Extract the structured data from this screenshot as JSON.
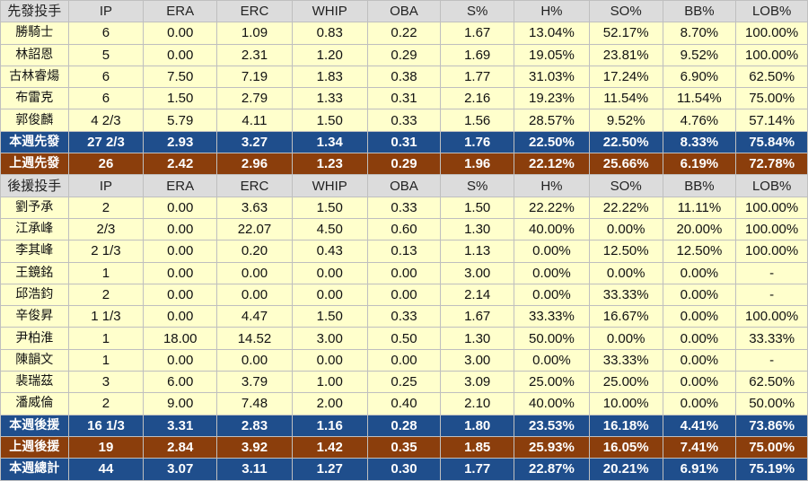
{
  "colors": {
    "header_bg": "#dcdcdc",
    "row_bg": "#ffffcc",
    "blue_total": "#1f4e8c",
    "brown_total": "#8b3e0c"
  },
  "starters": {
    "header": [
      "先發投手",
      "IP",
      "ERA",
      "ERC",
      "WHIP",
      "OBA",
      "S%",
      "H%",
      "SO%",
      "BB%",
      "LOB%"
    ],
    "rows": [
      [
        "勝騎士",
        "6",
        "0.00",
        "1.09",
        "0.83",
        "0.22",
        "1.67",
        "13.04%",
        "52.17%",
        "8.70%",
        "100.00%"
      ],
      [
        "林詔恩",
        "5",
        "0.00",
        "2.31",
        "1.20",
        "0.29",
        "1.69",
        "19.05%",
        "23.81%",
        "9.52%",
        "100.00%"
      ],
      [
        "古林睿煬",
        "6",
        "7.50",
        "7.19",
        "1.83",
        "0.38",
        "1.77",
        "31.03%",
        "17.24%",
        "6.90%",
        "62.50%"
      ],
      [
        "布雷克",
        "6",
        "1.50",
        "2.79",
        "1.33",
        "0.31",
        "2.16",
        "19.23%",
        "11.54%",
        "11.54%",
        "75.00%"
      ],
      [
        "郭俊麟",
        "4 2/3",
        "5.79",
        "4.11",
        "1.50",
        "0.33",
        "1.56",
        "28.57%",
        "9.52%",
        "4.76%",
        "57.14%"
      ]
    ],
    "this_week": [
      "本週先發",
      "27 2/3",
      "2.93",
      "3.27",
      "1.34",
      "0.31",
      "1.76",
      "22.50%",
      "22.50%",
      "8.33%",
      "75.84%"
    ],
    "last_week": [
      "上週先發",
      "26",
      "2.42",
      "2.96",
      "1.23",
      "0.29",
      "1.96",
      "22.12%",
      "25.66%",
      "6.19%",
      "72.78%"
    ]
  },
  "relievers": {
    "header": [
      "後援投手",
      "IP",
      "ERA",
      "ERC",
      "WHIP",
      "OBA",
      "S%",
      "H%",
      "SO%",
      "BB%",
      "LOB%"
    ],
    "rows": [
      [
        "劉予承",
        "2",
        "0.00",
        "3.63",
        "1.50",
        "0.33",
        "1.50",
        "22.22%",
        "22.22%",
        "11.11%",
        "100.00%"
      ],
      [
        "江承峰",
        "2/3",
        "0.00",
        "22.07",
        "4.50",
        "0.60",
        "1.30",
        "40.00%",
        "0.00%",
        "20.00%",
        "100.00%"
      ],
      [
        "李其峰",
        "2 1/3",
        "0.00",
        "0.20",
        "0.43",
        "0.13",
        "1.13",
        "0.00%",
        "12.50%",
        "12.50%",
        "100.00%"
      ],
      [
        "王鏡銘",
        "1",
        "0.00",
        "0.00",
        "0.00",
        "0.00",
        "3.00",
        "0.00%",
        "0.00%",
        "0.00%",
        "-"
      ],
      [
        "邱浩鈞",
        "2",
        "0.00",
        "0.00",
        "0.00",
        "0.00",
        "2.14",
        "0.00%",
        "33.33%",
        "0.00%",
        "-"
      ],
      [
        "辛俊昇",
        "1 1/3",
        "0.00",
        "4.47",
        "1.50",
        "0.33",
        "1.67",
        "33.33%",
        "16.67%",
        "0.00%",
        "100.00%"
      ],
      [
        "尹柏淮",
        "1",
        "18.00",
        "14.52",
        "3.00",
        "0.50",
        "1.30",
        "50.00%",
        "0.00%",
        "0.00%",
        "33.33%"
      ],
      [
        "陳韻文",
        "1",
        "0.00",
        "0.00",
        "0.00",
        "0.00",
        "3.00",
        "0.00%",
        "33.33%",
        "0.00%",
        "-"
      ],
      [
        "裴瑞茲",
        "3",
        "6.00",
        "3.79",
        "1.00",
        "0.25",
        "3.09",
        "25.00%",
        "25.00%",
        "0.00%",
        "62.50%"
      ],
      [
        "潘威倫",
        "2",
        "9.00",
        "7.48",
        "2.00",
        "0.40",
        "2.10",
        "40.00%",
        "10.00%",
        "0.00%",
        "50.00%"
      ]
    ],
    "this_week": [
      "本週後援",
      "16 1/3",
      "3.31",
      "2.83",
      "1.16",
      "0.28",
      "1.80",
      "23.53%",
      "16.18%",
      "4.41%",
      "73.86%"
    ],
    "last_week": [
      "上週後援",
      "19",
      "2.84",
      "3.92",
      "1.42",
      "0.35",
      "1.85",
      "25.93%",
      "16.05%",
      "7.41%",
      "75.00%"
    ]
  },
  "overall": [
    "本週總計",
    "44",
    "3.07",
    "3.11",
    "1.27",
    "0.30",
    "1.77",
    "22.87%",
    "20.21%",
    "6.91%",
    "75.19%"
  ]
}
